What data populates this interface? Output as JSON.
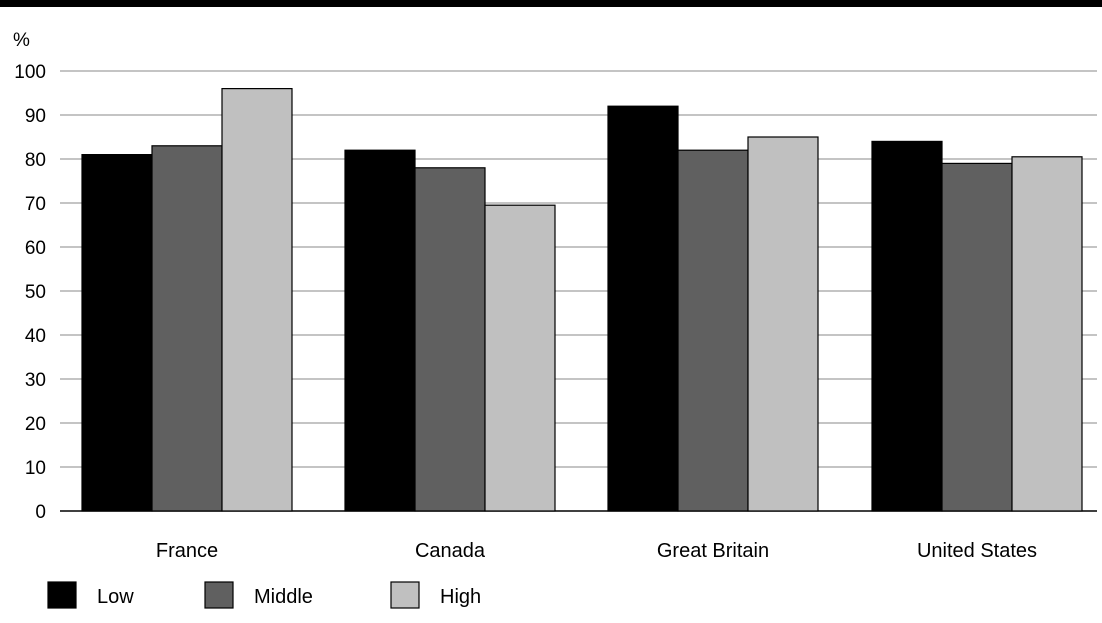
{
  "chart_data": {
    "type": "bar",
    "ylabel": "%",
    "ylim": [
      0,
      100
    ],
    "yticks": [
      0,
      10,
      20,
      30,
      40,
      50,
      60,
      70,
      80,
      90,
      100
    ],
    "grid": true,
    "legend_position": "bottom-left",
    "categories": [
      "France",
      "Canada",
      "Great Britain",
      "United States"
    ],
    "series": [
      {
        "name": "Low",
        "color": "#000000",
        "values": [
          81,
          82,
          92,
          84
        ]
      },
      {
        "name": "Middle",
        "color": "#606060",
        "values": [
          83,
          78,
          82,
          79
        ]
      },
      {
        "name": "High",
        "color": "#c0c0c0",
        "values": [
          96,
          69.5,
          85,
          80.5
        ]
      }
    ]
  }
}
